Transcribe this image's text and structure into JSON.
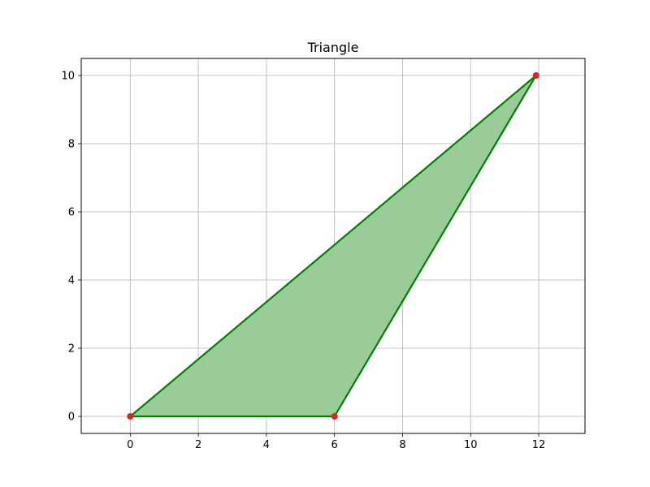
{
  "chart_data": {
    "type": "scatter",
    "title": "Triangle",
    "xlabel": "",
    "ylabel": "",
    "xlim": [
      -1.44,
      13.36
    ],
    "ylim": [
      -0.5,
      10.5
    ],
    "x_ticks": [
      0,
      2,
      4,
      6,
      8,
      10,
      12
    ],
    "y_ticks": [
      0,
      2,
      4,
      6,
      8,
      10
    ],
    "grid": true,
    "series": [
      {
        "points": [
          {
            "x": 0,
            "y": 0
          },
          {
            "x": 6,
            "y": 0
          },
          {
            "x": 11.92,
            "y": 10
          }
        ],
        "fill_color": "#99cc99",
        "edge_color": "#008000",
        "marker_color": "#d62728"
      }
    ]
  }
}
